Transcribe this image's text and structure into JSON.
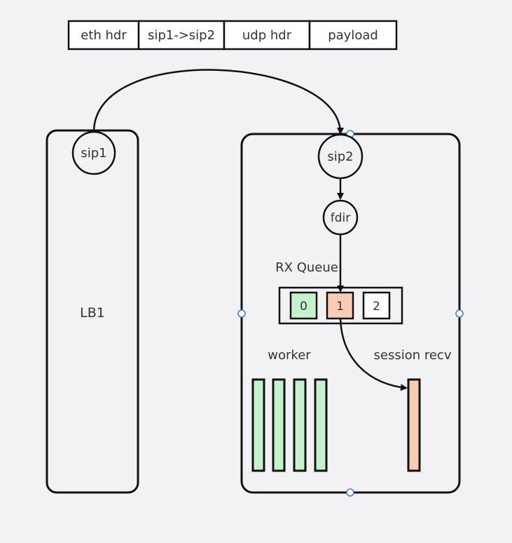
{
  "packet_header": [
    "eth hdr",
    "sip1->sip2",
    "udp hdr",
    "payload"
  ],
  "lb1": {
    "label": "LB1",
    "port_label": "sip1"
  },
  "server": {
    "port_label": "sip2",
    "fdir_label": "fdir",
    "rx_queue_title": "RX Queue",
    "queues": [
      "0",
      "1",
      "2"
    ],
    "worker_label": "worker",
    "session_recv_label": "session recv"
  },
  "colors": {
    "background": "#f2f2f4",
    "stroke": "#111111",
    "green": "#c5f2cd",
    "peach": "#f8cdb3",
    "white": "#ffffff",
    "handle": "#3b7dd8"
  }
}
